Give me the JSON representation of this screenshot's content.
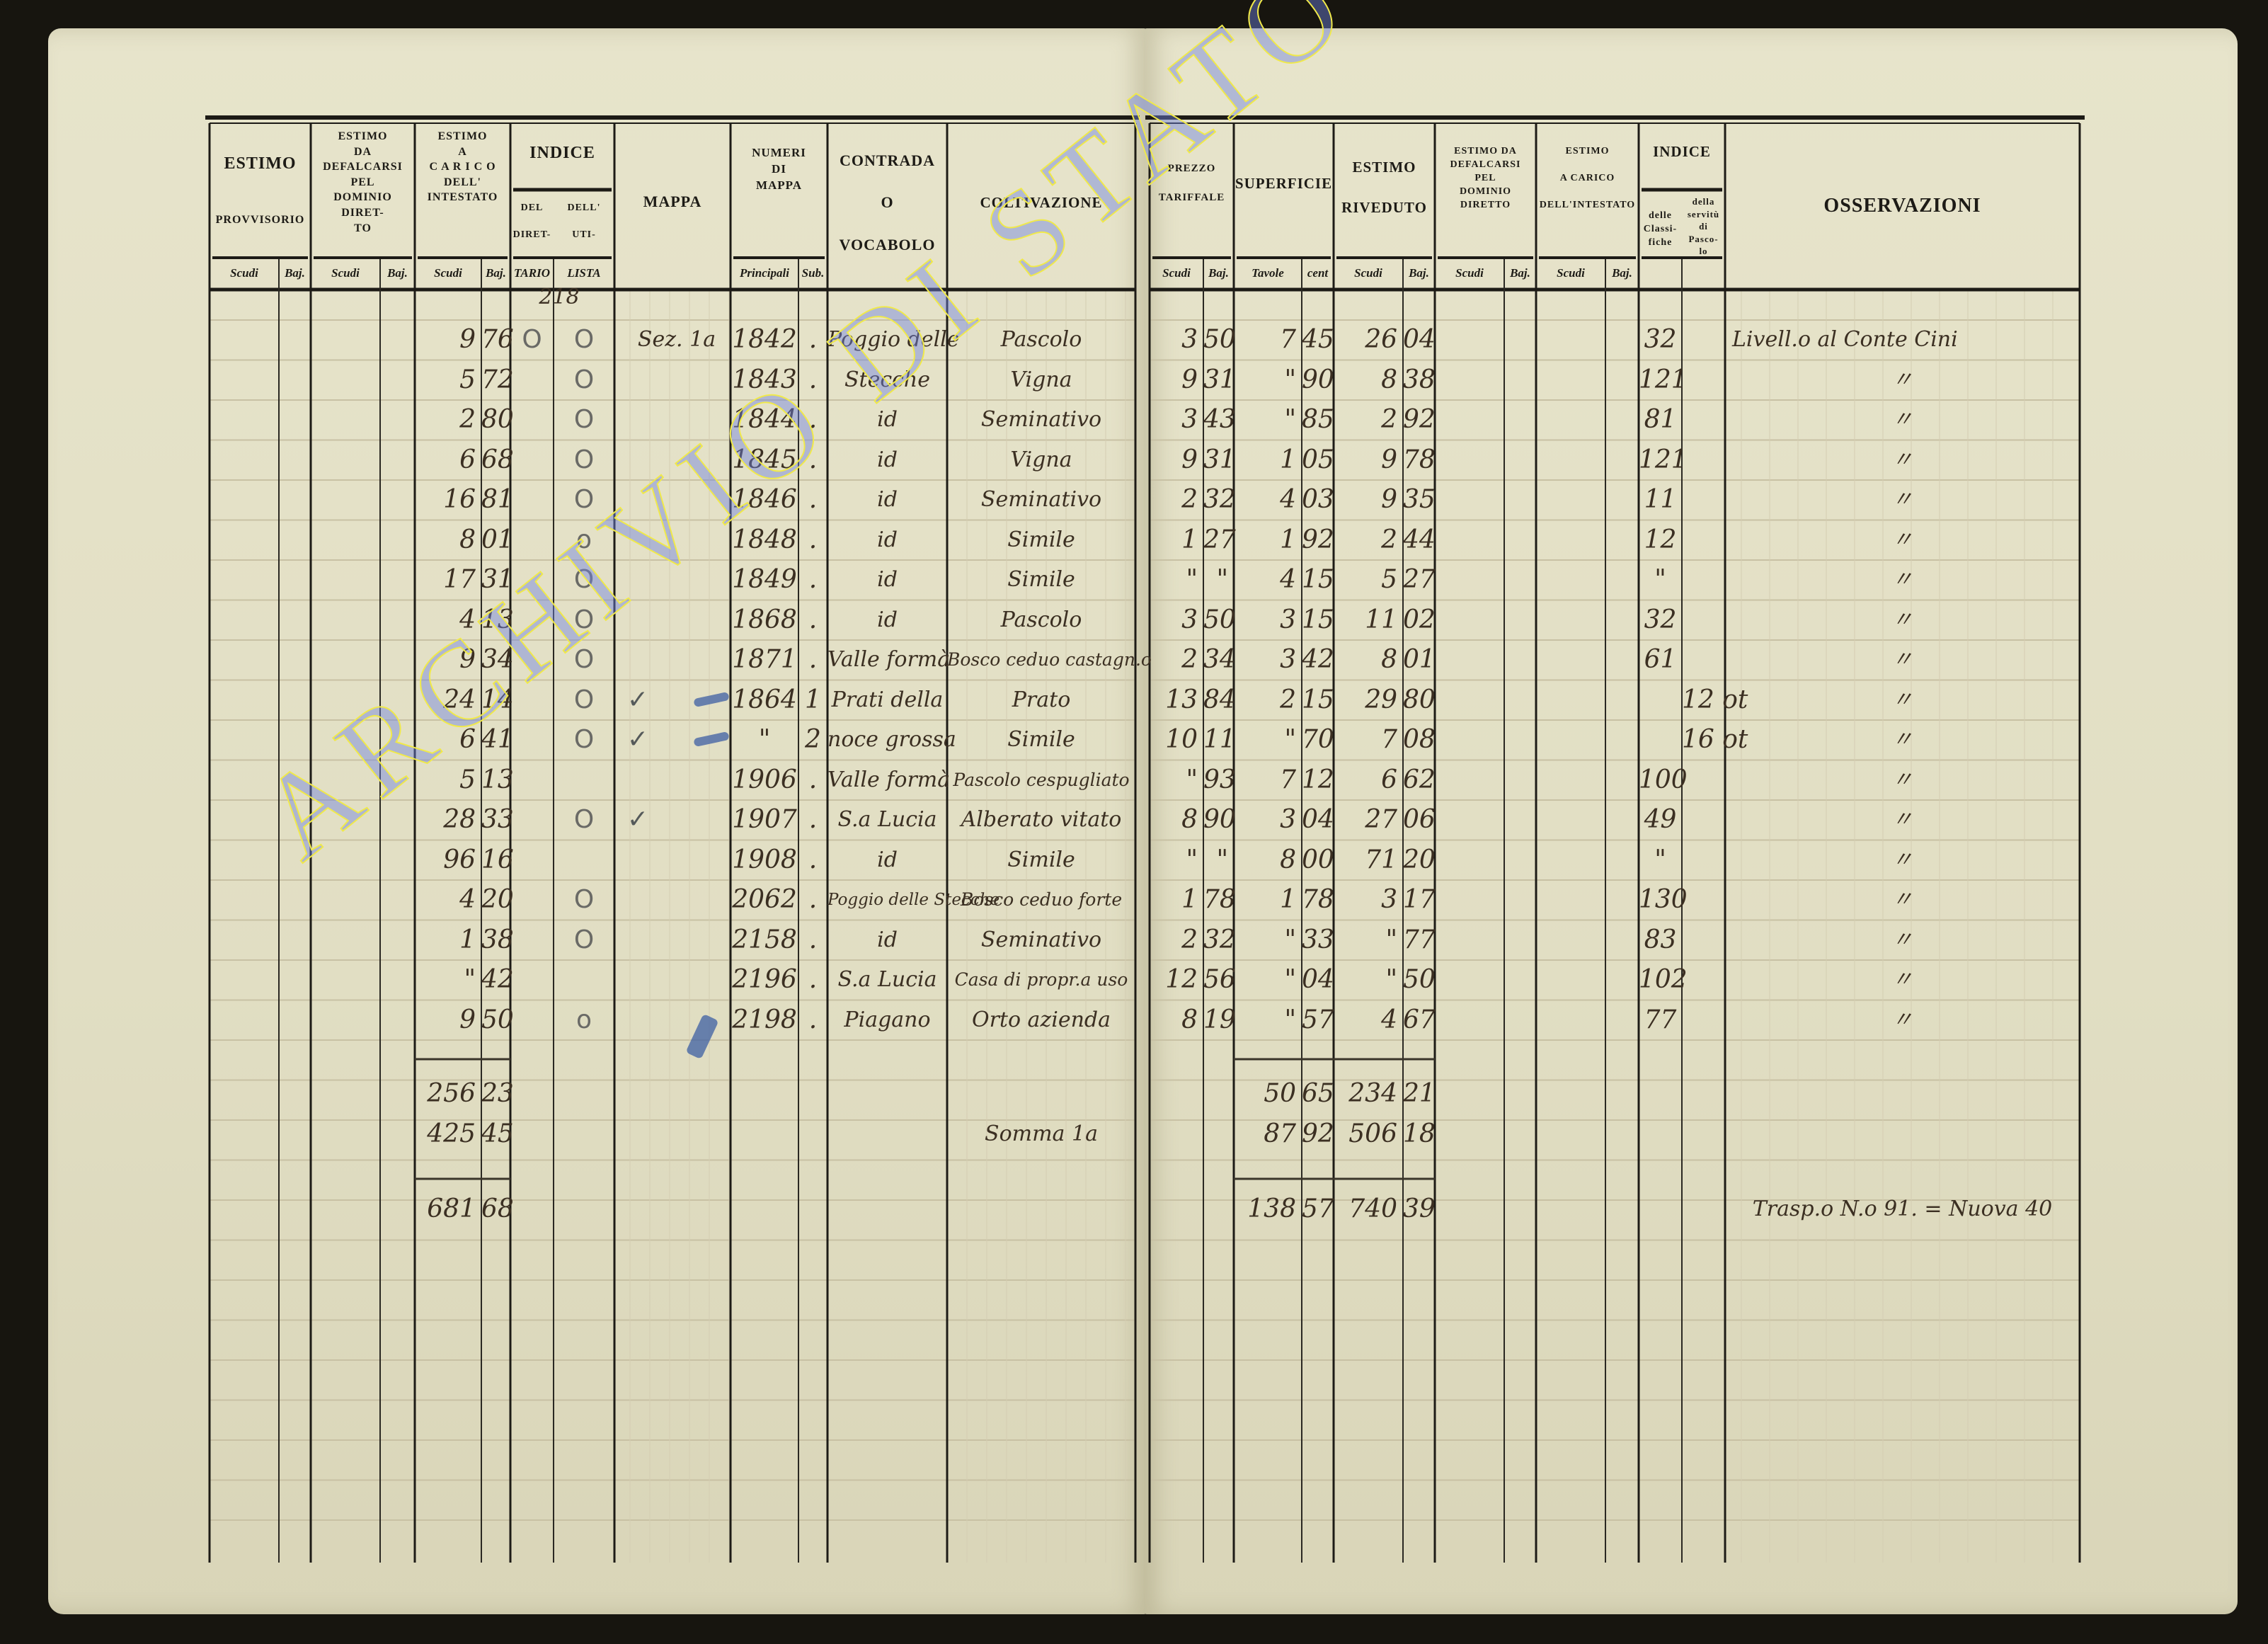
{
  "left_page": {
    "headers": {
      "estimo_provvisorio": {
        "title": "ESTIMO",
        "sub": "PROVVISORIO"
      },
      "estimo_defalcarsi": "ESTIMO\nDA\nDEFALCARSI\nPEL\nDOMINIO DIRET-\nTO",
      "estimo_carico": "ESTIMO\nA\nC A R I C O\nDELL'\nINTESTATO",
      "indice": "INDICE",
      "indice_del": "DEL\n\nDIRET-",
      "indice_dell": "DELL'\n\nUTI-",
      "indice_del_sub": "TARIO",
      "indice_dell_sub": "LISTA",
      "mappa": "MAPPA",
      "numeri": "NUMERI\nDI\nMAPPA",
      "contrada": "CONTRADA\n\nO\n\nVOCABOLO",
      "coltivazione": "COLTIVAZIONE",
      "scudi": "Scudi",
      "baj": "Baj.",
      "principali": "Principali",
      "sub": "Sub."
    },
    "annotation": "218"
  },
  "right_page": {
    "headers": {
      "prezzo": "PREZZO\n\nTARIFFALE",
      "superficie": "SUPERFICIE",
      "estimo_riveduto": "ESTIMO\n\nRIVEDUTO",
      "estimo_defalcarsi": "ESTIMO DA\nDEFALCARSI\nPEL\nDOMINIO\nDIRETTO",
      "estimo_carico": "ESTIMO\n\nA CARICO\n\nDELL'INTESTATO",
      "indice": "INDICE",
      "indice_classifiche": "delle\nClassi-\nfiche",
      "indice_servitu": "della\nservitù\ndi\nPasco-\nlo",
      "osservazioni": "OSSERVAZIONI",
      "scudi": "Scudi",
      "baj": "Baj.",
      "tavole": "Tavole",
      "cent": "cent"
    }
  },
  "rows": [
    {
      "intestato_scudi": "9",
      "intestato_baj": "76",
      "del_direttario": "O",
      "dell_utilista": "O",
      "check": "",
      "mappa": "Sez. 1a",
      "principale": "1842",
      "sub": ".",
      "contrada": "Poggio delle",
      "coltivazione": "Pascolo",
      "prezzo_scudi": "3",
      "prezzo_baj": "50",
      "tavole": "7",
      "cent": "45",
      "riveduto_scudi": "26",
      "riveduto_baj": "04",
      "classifiche": "32",
      "servitu": "",
      "osservazioni": "Livell.o al Conte Cini"
    },
    {
      "intestato_scudi": "5",
      "intestato_baj": "72",
      "del_direttario": "",
      "dell_utilista": "O",
      "check": "",
      "mappa": "",
      "principale": "1843",
      "sub": ".",
      "contrada": "Stecche",
      "coltivazione": "Vigna",
      "prezzo_scudi": "9",
      "prezzo_baj": "31",
      "tavole": "\"",
      "cent": "90",
      "riveduto_scudi": "8",
      "riveduto_baj": "38",
      "classifiche": "121",
      "servitu": "",
      "osservazioni": "〃"
    },
    {
      "intestato_scudi": "2",
      "intestato_baj": "80",
      "del_direttario": "",
      "dell_utilista": "O",
      "check": "",
      "mappa": "",
      "principale": "1844",
      "sub": ".",
      "contrada": "id",
      "coltivazione": "Seminativo",
      "prezzo_scudi": "3",
      "prezzo_baj": "43",
      "tavole": "\"",
      "cent": "85",
      "riveduto_scudi": "2",
      "riveduto_baj": "92",
      "classifiche": "81",
      "servitu": "",
      "osservazioni": "〃"
    },
    {
      "intestato_scudi": "6",
      "intestato_baj": "68",
      "del_direttario": "",
      "dell_utilista": "O",
      "check": "",
      "mappa": "",
      "principale": "1845",
      "sub": ".",
      "contrada": "id",
      "coltivazione": "Vigna",
      "prezzo_scudi": "9",
      "prezzo_baj": "31",
      "tavole": "1",
      "cent": "05",
      "riveduto_scudi": "9",
      "riveduto_baj": "78",
      "classifiche": "121",
      "servitu": "",
      "osservazioni": "〃"
    },
    {
      "intestato_scudi": "16",
      "intestato_baj": "81",
      "del_direttario": "",
      "dell_utilista": "O",
      "check": "",
      "mappa": "",
      "principale": "1846",
      "sub": ".",
      "contrada": "id",
      "coltivazione": "Seminativo",
      "prezzo_scudi": "2",
      "prezzo_baj": "32",
      "tavole": "4",
      "cent": "03",
      "riveduto_scudi": "9",
      "riveduto_baj": "35",
      "classifiche": "11",
      "servitu": "",
      "osservazioni": "〃"
    },
    {
      "intestato_scudi": "8",
      "intestato_baj": "01",
      "del_direttario": "",
      "dell_utilista": "o",
      "check": "",
      "mappa": "",
      "principale": "1848",
      "sub": ".",
      "contrada": "id",
      "coltivazione": "Simile",
      "prezzo_scudi": "1",
      "prezzo_baj": "27",
      "tavole": "1",
      "cent": "92",
      "riveduto_scudi": "2",
      "riveduto_baj": "44",
      "classifiche": "12",
      "servitu": "",
      "osservazioni": "〃"
    },
    {
      "intestato_scudi": "17",
      "intestato_baj": "31",
      "del_direttario": "",
      "dell_utilista": "O",
      "check": "",
      "mappa": "",
      "principale": "1849",
      "sub": ".",
      "contrada": "id",
      "coltivazione": "Simile",
      "prezzo_scudi": "\"",
      "prezzo_baj": "\"",
      "tavole": "4",
      "cent": "15",
      "riveduto_scudi": "5",
      "riveduto_baj": "27",
      "classifiche": "\"",
      "servitu": "",
      "osservazioni": "〃"
    },
    {
      "intestato_scudi": "4",
      "intestato_baj": "13",
      "del_direttario": "",
      "dell_utilista": "O",
      "check": "",
      "mappa": "",
      "principale": "1868",
      "sub": ".",
      "contrada": "id",
      "coltivazione": "Pascolo",
      "prezzo_scudi": "3",
      "prezzo_baj": "50",
      "tavole": "3",
      "cent": "15",
      "riveduto_scudi": "11",
      "riveduto_baj": "02",
      "classifiche": "32",
      "servitu": "",
      "osservazioni": "〃"
    },
    {
      "intestato_scudi": "9",
      "intestato_baj": "34",
      "del_direttario": "",
      "dell_utilista": "O",
      "check": "",
      "mappa": "",
      "principale": "1871",
      "sub": ".",
      "contrada": "Valle formà",
      "coltivazione": "Bosco ceduo castagn.o",
      "prezzo_scudi": "2",
      "prezzo_baj": "34",
      "tavole": "3",
      "cent": "42",
      "riveduto_scudi": "8",
      "riveduto_baj": "01",
      "classifiche": "61",
      "servitu": "",
      "osservazioni": "〃"
    },
    {
      "intestato_scudi": "24",
      "intestato_baj": "14",
      "del_direttario": "",
      "dell_utilista": "O",
      "check": "✓",
      "mappa": "",
      "principale": "1864",
      "sub": "1",
      "contrada": "Prati della",
      "coltivazione": "Prato",
      "prezzo_scudi": "13",
      "prezzo_baj": "84",
      "tavole": "2",
      "cent": "15",
      "riveduto_scudi": "29",
      "riveduto_baj": "80",
      "classifiche": "",
      "servitu": "12 ot",
      "osservazioni": "〃"
    },
    {
      "intestato_scudi": "6",
      "intestato_baj": "41",
      "del_direttario": "",
      "dell_utilista": "O",
      "check": "✓",
      "mappa": "",
      "principale": "\"",
      "sub": "2",
      "contrada": "noce grossa",
      "coltivazione": "Simile",
      "prezzo_scudi": "10",
      "prezzo_baj": "11",
      "tavole": "\"",
      "cent": "70",
      "riveduto_scudi": "7",
      "riveduto_baj": "08",
      "classifiche": "",
      "servitu": "16 ot",
      "osservazioni": "〃"
    },
    {
      "intestato_scudi": "5",
      "intestato_baj": "13",
      "del_direttario": "",
      "dell_utilista": "",
      "check": "",
      "mappa": "",
      "principale": "1906",
      "sub": ".",
      "contrada": "Valle formà",
      "coltivazione": "Pascolo cespugliato",
      "prezzo_scudi": "\"",
      "prezzo_baj": "93",
      "tavole": "7",
      "cent": "12",
      "riveduto_scudi": "6",
      "riveduto_baj": "62",
      "classifiche": "100",
      "servitu": "",
      "osservazioni": "〃"
    },
    {
      "intestato_scudi": "28",
      "intestato_baj": "33",
      "del_direttario": "",
      "dell_utilista": "O",
      "check": "✓",
      "mappa": "",
      "principale": "1907",
      "sub": ".",
      "contrada": "S.a Lucia",
      "coltivazione": "Alberato vitato",
      "prezzo_scudi": "8",
      "prezzo_baj": "90",
      "tavole": "3",
      "cent": "04",
      "riveduto_scudi": "27",
      "riveduto_baj": "06",
      "classifiche": "49",
      "servitu": "",
      "osservazioni": "〃"
    },
    {
      "intestato_scudi": "96",
      "intestato_baj": "16",
      "del_direttario": "",
      "dell_utilista": "",
      "check": "",
      "mappa": "",
      "principale": "1908",
      "sub": ".",
      "contrada": "id",
      "coltivazione": "Simile",
      "prezzo_scudi": "\"",
      "prezzo_baj": "\"",
      "tavole": "8",
      "cent": "00",
      "riveduto_scudi": "71",
      "riveduto_baj": "20",
      "classifiche": "\"",
      "servitu": "",
      "osservazioni": "〃"
    },
    {
      "intestato_scudi": "4",
      "intestato_baj": "20",
      "del_direttario": "",
      "dell_utilista": "O",
      "check": "",
      "mappa": "",
      "principale": "2062",
      "sub": ".",
      "contrada": "Poggio delle Stecche",
      "coltivazione": "Bosco ceduo forte",
      "prezzo_scudi": "1",
      "prezzo_baj": "78",
      "tavole": "1",
      "cent": "78",
      "riveduto_scudi": "3",
      "riveduto_baj": "17",
      "classifiche": "130",
      "servitu": "",
      "osservazioni": "〃"
    },
    {
      "intestato_scudi": "1",
      "intestato_baj": "38",
      "del_direttario": "",
      "dell_utilista": "O",
      "check": "",
      "mappa": "",
      "principale": "2158",
      "sub": ".",
      "contrada": "id",
      "coltivazione": "Seminativo",
      "prezzo_scudi": "2",
      "prezzo_baj": "32",
      "tavole": "\"",
      "cent": "33",
      "riveduto_scudi": "\"",
      "riveduto_baj": "77",
      "classifiche": "83",
      "servitu": "",
      "osservazioni": "〃"
    },
    {
      "intestato_scudi": "\"",
      "intestato_baj": "42",
      "del_direttario": "",
      "dell_utilista": "",
      "check": "",
      "mappa": "",
      "principale": "2196",
      "sub": ".",
      "contrada": "S.a Lucia",
      "coltivazione": "Casa di propr.a uso",
      "prezzo_scudi": "12",
      "prezzo_baj": "56",
      "tavole": "\"",
      "cent": "04",
      "riveduto_scudi": "\"",
      "riveduto_baj": "50",
      "classifiche": "102",
      "servitu": "",
      "osservazioni": "〃"
    },
    {
      "intestato_scudi": "9",
      "intestato_baj": "50",
      "del_direttario": "",
      "dell_utilista": "o",
      "check": "",
      "mappa": "",
      "principale": "2198",
      "sub": ".",
      "contrada": "Piagano",
      "coltivazione": "Orto azienda",
      "prezzo_scudi": "8",
      "prezzo_baj": "19",
      "tavole": "\"",
      "cent": "57",
      "riveduto_scudi": "4",
      "riveduto_baj": "67",
      "classifiche": "77",
      "servitu": "",
      "osservazioni": "〃"
    }
  ],
  "totals": [
    {
      "intestato_scudi": "256",
      "intestato_baj": "23",
      "coltivazione": "",
      "tavole": "50",
      "cent": "65",
      "riveduto_scudi": "234",
      "riveduto_baj": "21",
      "osservazioni": ""
    },
    {
      "intestato_scudi": "425",
      "intestato_baj": "45",
      "coltivazione": "Somma 1a",
      "tavole": "87",
      "cent": "92",
      "riveduto_scudi": "506",
      "riveduto_baj": "18",
      "osservazioni": ""
    },
    {
      "intestato_scudi": "681",
      "intestato_baj": "68",
      "coltivazione": "",
      "tavole": "138",
      "cent": "57",
      "riveduto_scudi": "740",
      "riveduto_baj": "39",
      "osservazioni": "Trasp.o N.o 91. = Nuova 40"
    }
  ],
  "watermark": "ARCHIVIO DI STATO DI VITERBO",
  "colors": {
    "paper": "#e4e1c6",
    "ink": "#3b2f22",
    "rule": "#1d1b16",
    "watermark": "#6e82e1",
    "watermark_outline": "#f0e94a",
    "blue_pencil": "#3d5fa3"
  }
}
